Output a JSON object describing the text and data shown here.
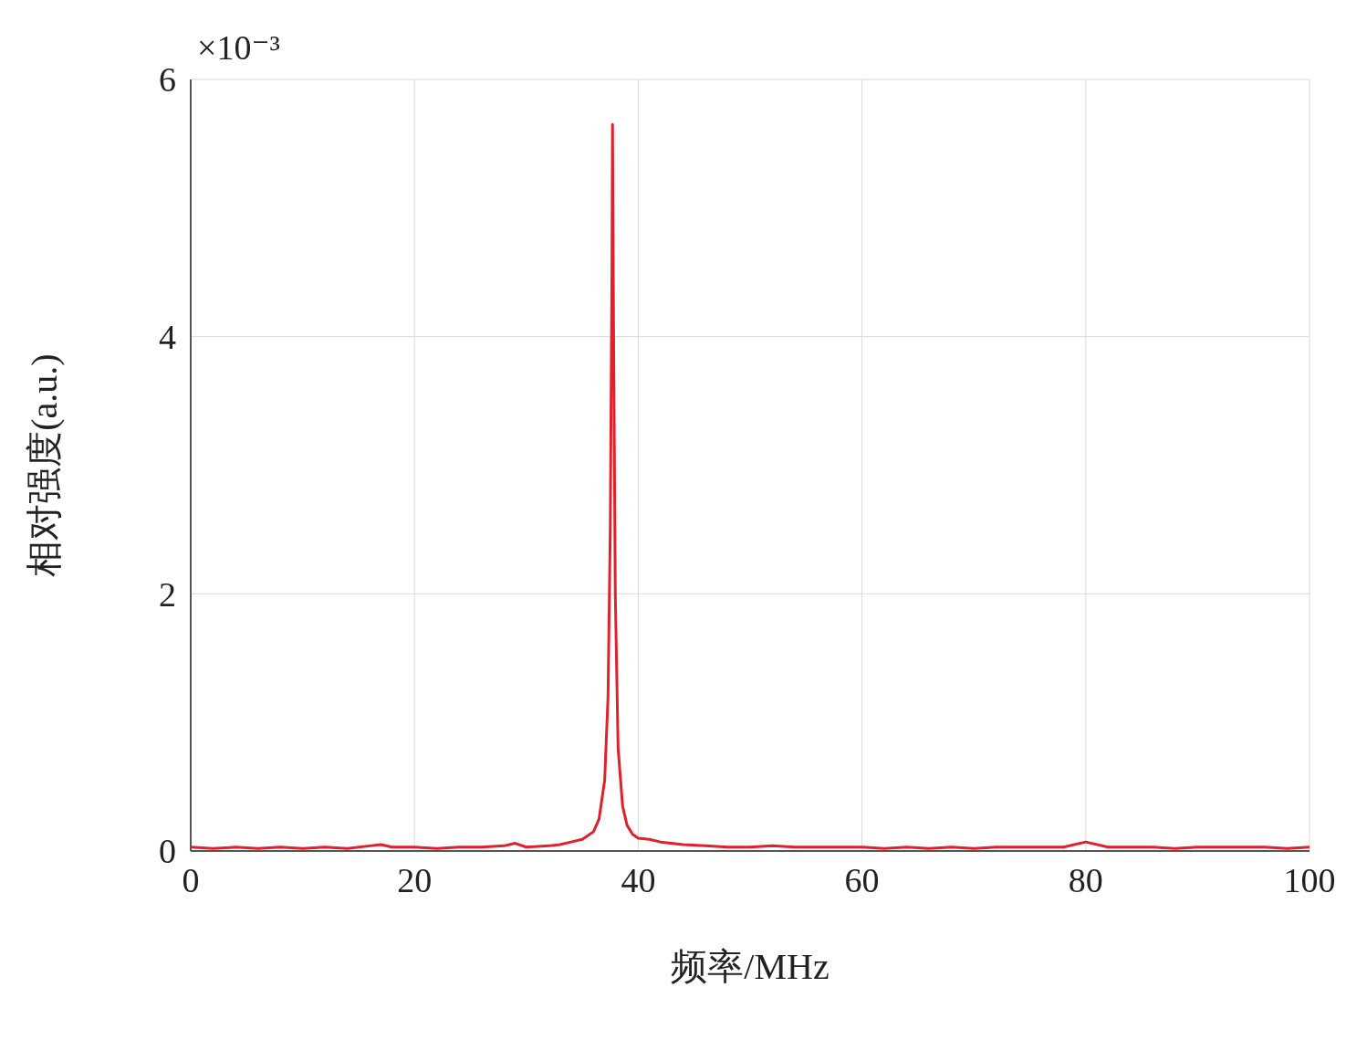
{
  "chart_data": {
    "type": "line",
    "xlabel": "频率/MHz",
    "ylabel": "相对强度(a.u.)",
    "annotations": [
      "×10⁻³"
    ],
    "xlim": [
      0,
      100
    ],
    "xticks": [
      0,
      20,
      40,
      60,
      80,
      100
    ],
    "ylim": [
      0,
      6
    ],
    "yticks": [
      0,
      2,
      4,
      6
    ],
    "grid": true,
    "marker": "none",
    "line_style": "solid",
    "series": [
      {
        "color": "#e0202a",
        "x": [
          0,
          2,
          4,
          6,
          8,
          10,
          12,
          14,
          16,
          17,
          18,
          20,
          22,
          24,
          26,
          28,
          29,
          30,
          32,
          33,
          34,
          35,
          36,
          36.5,
          37,
          37.3,
          37.5,
          37.65,
          37.7,
          37.8,
          37.95,
          38.2,
          38.6,
          39,
          39.5,
          40,
          41,
          42,
          44,
          46,
          48,
          50,
          52,
          54,
          56,
          58,
          60,
          62,
          64,
          66,
          68,
          70,
          72,
          74,
          76,
          78,
          80,
          82,
          84,
          86,
          88,
          90,
          92,
          94,
          96,
          98,
          100
        ],
        "values": [
          0.03,
          0.02,
          0.03,
          0.02,
          0.03,
          0.02,
          0.03,
          0.02,
          0.04,
          0.05,
          0.03,
          0.03,
          0.02,
          0.03,
          0.03,
          0.04,
          0.06,
          0.03,
          0.04,
          0.05,
          0.07,
          0.09,
          0.15,
          0.25,
          0.55,
          1.2,
          2.5,
          4.5,
          5.65,
          4.0,
          2.0,
          0.8,
          0.35,
          0.2,
          0.13,
          0.1,
          0.09,
          0.07,
          0.05,
          0.04,
          0.03,
          0.03,
          0.04,
          0.03,
          0.03,
          0.03,
          0.03,
          0.02,
          0.03,
          0.02,
          0.03,
          0.02,
          0.03,
          0.03,
          0.03,
          0.03,
          0.07,
          0.03,
          0.03,
          0.03,
          0.02,
          0.03,
          0.03,
          0.03,
          0.03,
          0.02,
          0.03
        ]
      }
    ]
  }
}
